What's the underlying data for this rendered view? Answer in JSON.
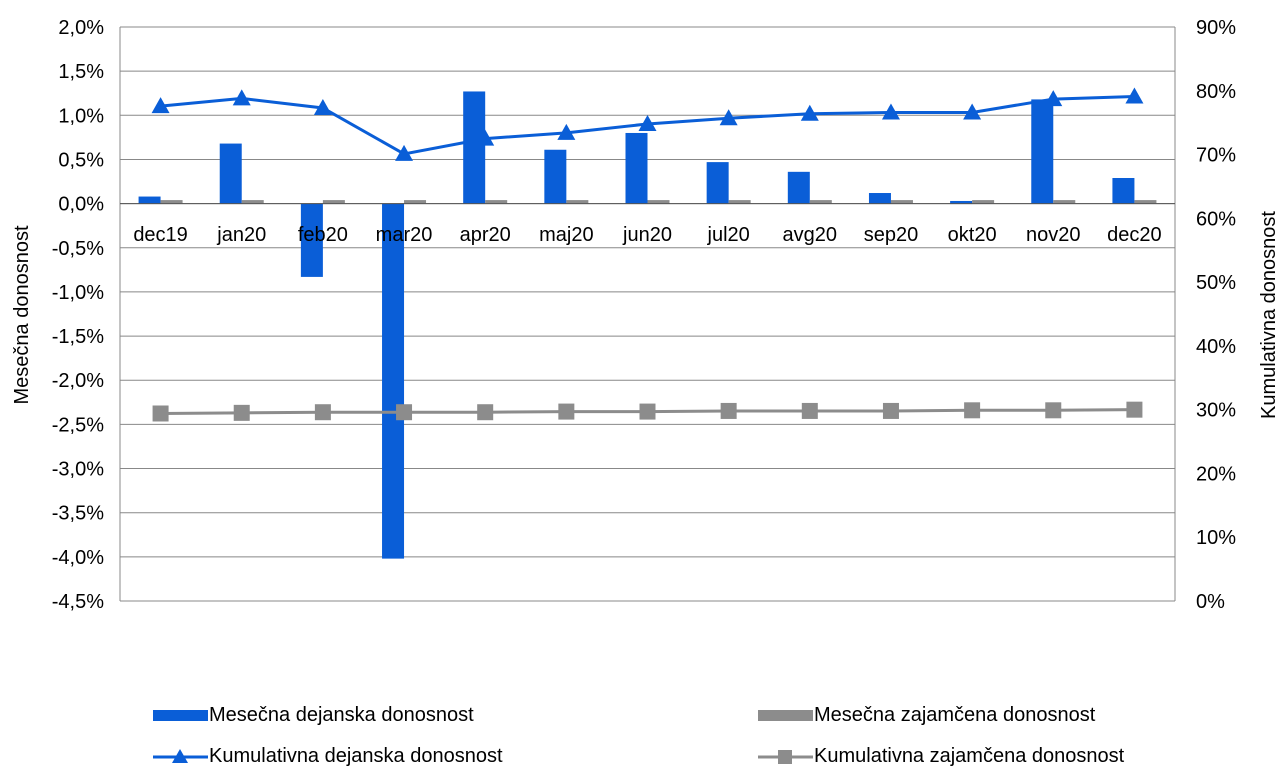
{
  "chart_data": {
    "type": "bar",
    "categories": [
      "dec19",
      "jan20",
      "feb20",
      "mar20",
      "apr20",
      "maj20",
      "jun20",
      "jul20",
      "avg20",
      "sep20",
      "okt20",
      "nov20",
      "dec20"
    ],
    "y_left": {
      "label": "Mesečna donosnost",
      "ylim": [
        -4.5,
        2.0
      ],
      "ticks": [
        2.0,
        1.5,
        1.0,
        0.5,
        0.0,
        -0.5,
        -1.0,
        -1.5,
        -2.0,
        -2.5,
        -3.0,
        -3.5,
        -4.0,
        -4.5
      ],
      "tick_labels": [
        "2,0%",
        "1,5%",
        "1,0%",
        "0,5%",
        "0,0%",
        "-0,5%",
        "-1,0%",
        "-1,5%",
        "-2,0%",
        "-2,5%",
        "-3,0%",
        "-3,5%",
        "-4,0%",
        "-4,5%"
      ]
    },
    "y_right": {
      "label": "Kumulativna donosnost",
      "ylim": [
        0,
        90
      ],
      "ticks": [
        90,
        80,
        70,
        60,
        50,
        40,
        30,
        20,
        10,
        0
      ],
      "tick_labels": [
        "90%",
        "80%",
        "70%",
        "60%",
        "50%",
        "40%",
        "30%",
        "20%",
        "10%",
        "0%"
      ]
    },
    "grid": true,
    "legend_position": "bottom",
    "series": [
      {
        "name": "Mesečna dejanska donosnost",
        "kind": "bar",
        "axis": "left",
        "color": "#0a5ed7",
        "values": [
          0.08,
          0.68,
          -0.83,
          -4.02,
          1.27,
          0.61,
          0.8,
          0.47,
          0.36,
          0.12,
          0.03,
          1.18,
          0.29
        ]
      },
      {
        "name": "Mesečna zajamčena donosnost",
        "kind": "bar",
        "axis": "left",
        "color": "#8c8c8c",
        "values": [
          0.04,
          0.04,
          0.04,
          0.04,
          0.04,
          0.04,
          0.04,
          0.04,
          0.04,
          0.04,
          0.04,
          0.04,
          0.04
        ]
      },
      {
        "name": "Kumulativna dejanska donosnost",
        "kind": "line",
        "marker": "triangle",
        "axis": "right",
        "color": "#0a5ed7",
        "values": [
          77.6,
          78.8,
          77.3,
          70.1,
          72.5,
          73.4,
          74.8,
          75.7,
          76.4,
          76.6,
          76.6,
          78.7,
          79.1
        ]
      },
      {
        "name": "Kumulativna zajamčena donosnost",
        "kind": "line",
        "marker": "square",
        "axis": "right",
        "color": "#8c8c8c",
        "values": [
          29.4,
          29.5,
          29.6,
          29.6,
          29.6,
          29.7,
          29.7,
          29.8,
          29.8,
          29.8,
          29.9,
          29.9,
          30.0
        ]
      }
    ]
  }
}
